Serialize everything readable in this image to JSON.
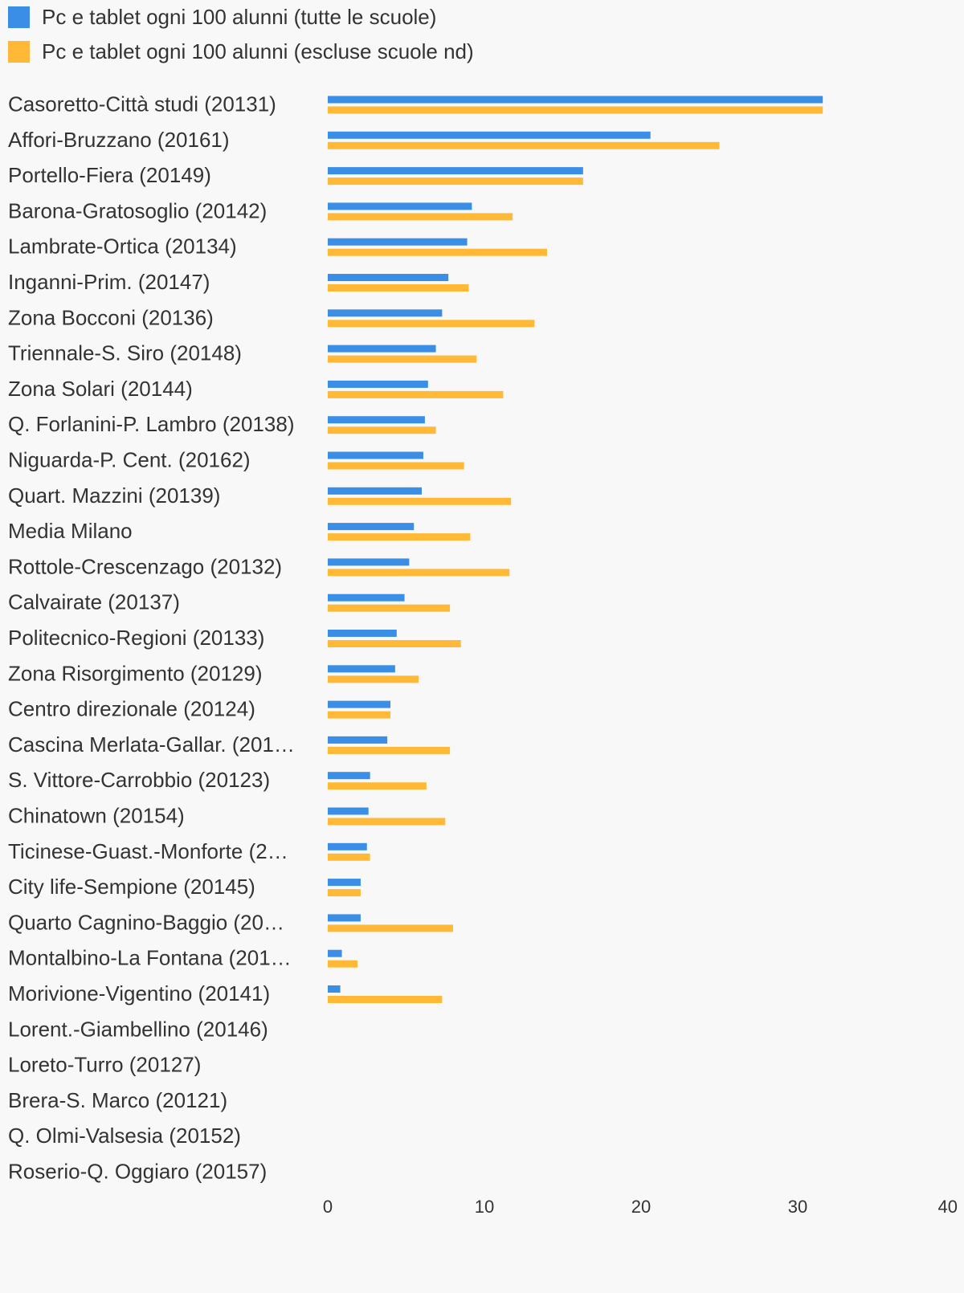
{
  "chart_data": {
    "type": "bar",
    "orientation": "horizontal",
    "legend_position": "top-left",
    "grid": false,
    "xlim": [
      0,
      40
    ],
    "x_ticks": [
      "0",
      "10",
      "20",
      "30",
      "40"
    ],
    "categories": [
      "Casoretto-Città studi (20131)",
      "Affori-Bruzzano (20161)",
      "Portello-Fiera (20149)",
      "Barona-Gratosoglio (20142)",
      "Lambrate-Ortica (20134)",
      "Inganni-Prim. (20147)",
      "Zona Bocconi (20136)",
      "Triennale-S. Siro (20148)",
      "Zona Solari (20144)",
      "Q. Forlanini-P. Lambro (20138)",
      "Niguarda-P. Cent. (20162)",
      "Quart. Mazzini (20139)",
      "Media Milano",
      "Rottole-Crescenzago (20132)",
      "Calvairate (20137)",
      "Politecnico-Regioni (20133)",
      "Zona Risorgimento (20129)",
      "Centro direzionale (20124)",
      "Cascina Merlata-Gallar. (201…",
      "S. Vittore-Carrobbio (20123)",
      "Chinatown (20154)",
      "Ticinese-Guast.-Monforte (2…",
      "City life-Sempione (20145)",
      "Quarto Cagnino-Baggio (20…",
      "Montalbino-La Fontana (201…",
      "Morivione-Vigentino (20141)",
      "Lorent.-Giambellino (20146)",
      "Loreto-Turro (20127)",
      "Brera-S. Marco (20121)",
      "Q. Olmi-Valsesia (20152)",
      "Roserio-Q. Oggiaro (20157)"
    ],
    "series": [
      {
        "name": "Pc e tablet ogni 100 alunni (tutte le scuole)",
        "color": "#3a8ee6",
        "values": [
          31.6,
          20.6,
          16.3,
          9.2,
          8.9,
          7.7,
          7.3,
          6.9,
          6.4,
          6.2,
          6.1,
          6.0,
          5.5,
          5.2,
          4.9,
          4.4,
          4.3,
          4.0,
          3.8,
          2.7,
          2.6,
          2.5,
          2.1,
          2.1,
          0.9,
          0.8,
          0,
          0,
          0,
          0,
          0
        ]
      },
      {
        "name": "Pc e tablet ogni 100 alunni (escluse scuole nd)",
        "color": "#ffb936",
        "values": [
          31.6,
          25.0,
          16.3,
          11.8,
          14.0,
          9.0,
          13.2,
          9.5,
          11.2,
          6.9,
          8.7,
          11.7,
          9.1,
          11.6,
          7.8,
          8.5,
          5.8,
          4.0,
          7.8,
          6.3,
          7.5,
          2.7,
          2.1,
          8.0,
          1.9,
          7.3,
          0,
          0,
          0,
          0,
          0
        ]
      }
    ]
  }
}
